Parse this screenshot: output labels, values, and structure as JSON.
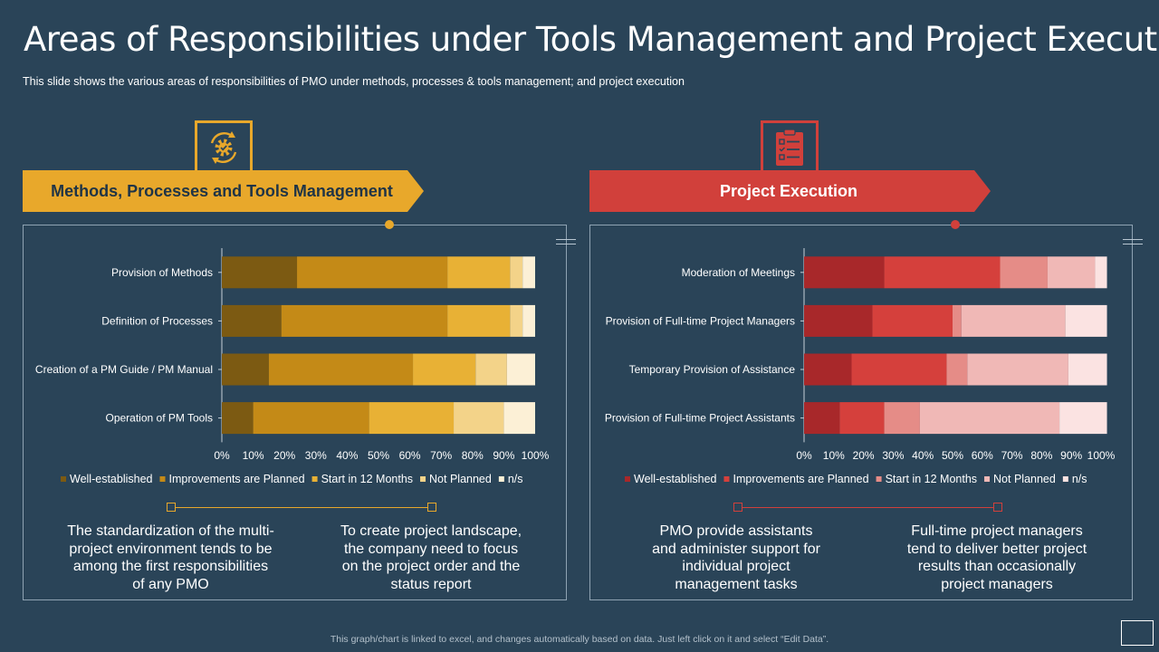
{
  "title": "Areas of Responsibilities under Tools Management and Project Execution",
  "subtitle": "This slide shows the various  areas of responsibilities of PMO under methods, processes & tools management; and project execution",
  "left_panel": {
    "heading": "Methods, Processes and Tools Management",
    "icon": "gear-cycle-icon",
    "accent": "#e8a82b",
    "notes": [
      "The standardization of the multi-project environment tends to be among the first responsibilities of any PMO",
      "To create project landscape, the company need to focus on the project order and the status report"
    ]
  },
  "right_panel": {
    "heading": "Project Execution",
    "icon": "clipboard-checklist-icon",
    "accent": "#d1403b",
    "notes": [
      "PMO provide assistants and administer support for individual project management tasks",
      "Full-time project managers tend to deliver better project results than occasionally project managers"
    ]
  },
  "chart_data": [
    {
      "type": "bar",
      "orientation": "horizontal",
      "stacked": "percent",
      "categories": [
        "Provision of Methods",
        "Definition of Processes",
        "Creation of a PM Guide / PM Manual",
        "Operation of PM Tools"
      ],
      "series": [
        {
          "name": "Well-established",
          "color": "#7c5a12",
          "values": [
            24,
            19,
            15,
            10
          ]
        },
        {
          "name": "Improvements are Planned",
          "color": "#c48a17",
          "values": [
            48,
            53,
            46,
            37
          ]
        },
        {
          "name": "Start in 12 Months",
          "color": "#e8b135",
          "values": [
            20,
            20,
            20,
            27
          ]
        },
        {
          "name": "Not Planned",
          "color": "#f3d389",
          "values": [
            4,
            4,
            10,
            16
          ]
        },
        {
          "name": "n/s",
          "color": "#fcf0d6",
          "values": [
            4,
            4,
            9,
            10
          ]
        }
      ],
      "xlim": [
        0,
        100
      ],
      "xticks": [
        "0%",
        "10%",
        "20%",
        "30%",
        "40%",
        "50%",
        "60%",
        "70%",
        "80%",
        "90%",
        "100%"
      ],
      "legend": "bottom"
    },
    {
      "type": "bar",
      "orientation": "horizontal",
      "stacked": "percent",
      "categories": [
        "Moderation of Meetings",
        "Provision of Full-time Project Managers",
        "Temporary Provision of Assistance",
        "Provision of Full-time Project Assistants"
      ],
      "series": [
        {
          "name": "Well-established",
          "color": "#a8282a",
          "values": [
            27,
            23,
            16,
            12
          ]
        },
        {
          "name": "Improvements are Planned",
          "color": "#d5403c",
          "values": [
            39,
            27,
            32,
            15
          ]
        },
        {
          "name": "Start in 12 Months",
          "color": "#e58c87",
          "values": [
            16,
            3,
            7,
            12
          ]
        },
        {
          "name": "Not Planned",
          "color": "#f0b8b6",
          "values": [
            16,
            35,
            34,
            47
          ]
        },
        {
          "name": "n/s",
          "color": "#fbe3e2",
          "values": [
            4,
            14,
            13,
            16
          ]
        }
      ],
      "xlim": [
        0,
        100
      ],
      "xticks": [
        "0%",
        "10%",
        "20%",
        "30%",
        "40%",
        "50%",
        "60%",
        "70%",
        "80%",
        "90%",
        "100%"
      ],
      "legend": "bottom"
    }
  ],
  "footer": "This graph/chart is linked to excel, and changes automatically based on data. Just left click on it and select “Edit Data”."
}
